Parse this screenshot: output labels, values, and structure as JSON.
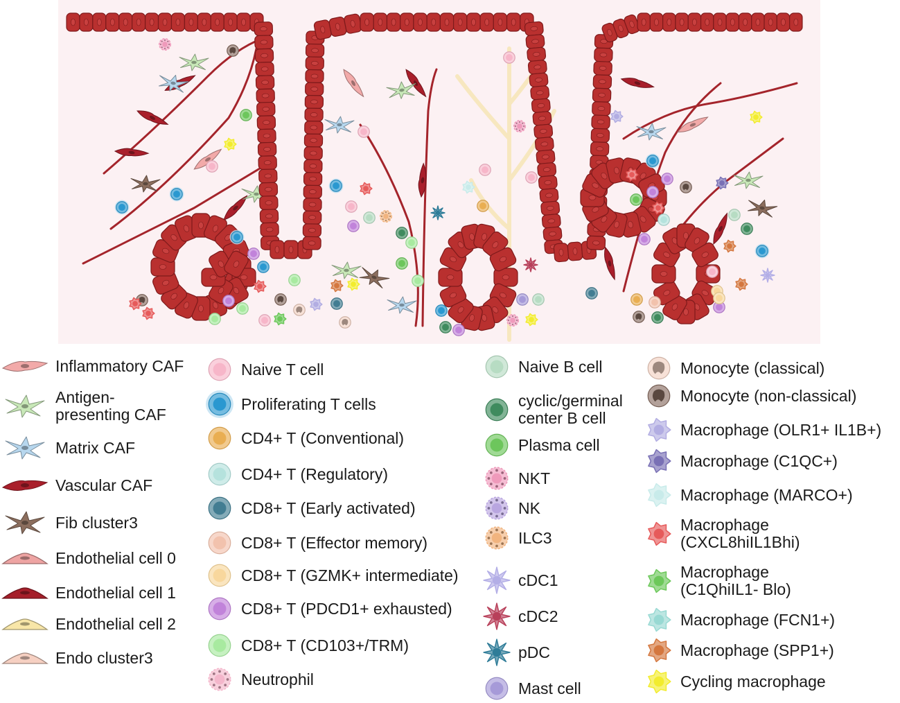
{
  "colors": {
    "tissue_bg": "#fcf1f3",
    "epithelium": "#b9302f",
    "epithelium_dark": "#7e1a1b",
    "nucleus": "#c8403f",
    "vessel": "#a4242b",
    "lymphatic": "#f7e7bf"
  },
  "legend": {
    "col1": [
      {
        "label": "Inflammatory CAF",
        "icon": "spindle-cell",
        "color": "#f2aaa9"
      },
      {
        "label": "Antigen-\npresenting CAF",
        "icon": "stellate-cell",
        "color": "#c8e8b8"
      },
      {
        "label": "Matrix CAF",
        "icon": "stellate-cell",
        "color": "#b7d7ee"
      },
      {
        "label": "Vascular CAF",
        "icon": "spindle-cell",
        "color": "#a91f2b"
      },
      {
        "label": "Fib cluster3",
        "icon": "stellate-cell",
        "color": "#8c6e5e"
      },
      {
        "label": "Endothelial cell 0",
        "icon": "flat-cell",
        "color": "#eea4a3"
      },
      {
        "label": "Endothelial cell 1",
        "icon": "flat-cell",
        "color": "#a51f2a"
      },
      {
        "label": "Endothelial cell 2",
        "icon": "flat-cell",
        "color": "#f8e6a8"
      },
      {
        "label": "Endo cluster3",
        "icon": "flat-cell",
        "color": "#f6d0c2"
      }
    ],
    "col2": [
      {
        "label": "Naive T cell",
        "icon": "round-cell",
        "color": "#f7b6c9"
      },
      {
        "label": "Proliferating T cells",
        "icon": "glowing-cell",
        "color": "#2a98d0"
      },
      {
        "label": "CD4+ T (Conventional)",
        "icon": "round-cell",
        "color": "#e9ae52"
      },
      {
        "label": "CD4+ T (Regulatory)",
        "icon": "round-cell",
        "color": "#b5e2dd"
      },
      {
        "label": "CD8+ T (Early activated)",
        "icon": "round-cell",
        "color": "#427d92"
      },
      {
        "label": "CD8+ T (Effector memory)",
        "icon": "round-cell",
        "color": "#f2c2ad"
      },
      {
        "label": "CD8+ T (GZMK+ intermediate)",
        "icon": "round-cell",
        "color": "#f8d79d"
      },
      {
        "label": "CD8+ T (PDCD1+ exhausted)",
        "icon": "round-cell",
        "color": "#c183da"
      },
      {
        "label": "CD8+ T (CD103+/TRM)",
        "icon": "round-cell",
        "color": "#a8eaa0"
      },
      {
        "label": "Neutrophil",
        "icon": "granular-cell",
        "color": "#f4b6cb"
      }
    ],
    "col3": [
      {
        "label": "Naive B cell",
        "icon": "round-cell",
        "color": "#b7dcc3"
      },
      {
        "label": "cyclic/germinal\ncenter B cell",
        "icon": "round-cell",
        "color": "#3f8b5e"
      },
      {
        "label": "Plasma cell",
        "icon": "round-cell",
        "color": "#6dc65c"
      },
      {
        "label": "NKT",
        "icon": "granular-cell",
        "color": "#ef9abb"
      },
      {
        "label": "NK",
        "icon": "granular-cell",
        "color": "#b9a6e0"
      },
      {
        "label": "ILC3",
        "icon": "granular-cell",
        "color": "#f1b47f"
      },
      {
        "label": "cDC1",
        "icon": "dendritic-cell",
        "color": "#b3aee6"
      },
      {
        "label": "cDC2",
        "icon": "dendritic-cell",
        "color": "#b8405a"
      },
      {
        "label": "pDC",
        "icon": "dendritic-cell",
        "color": "#2f7c98"
      },
      {
        "label": "Mast cell",
        "icon": "round-cell",
        "color": "#a69ad8"
      }
    ],
    "col4": [
      {
        "label": "Monocyte (classical)",
        "icon": "kidney-cell",
        "color": "#f2d1c2"
      },
      {
        "label": "Monocyte (non-classical)",
        "icon": "kidney-cell",
        "color": "#8a6e63"
      },
      {
        "label": "Macrophage (OLR1+ IL1B+)",
        "icon": "macrophage-cell",
        "color": "#b2ade2"
      },
      {
        "label": "Macrophage (C1QC+)",
        "icon": "macrophage-cell",
        "color": "#7970b5"
      },
      {
        "label": "Macrophage (MARCO+)",
        "icon": "macrophage-cell",
        "color": "#c8ebea"
      },
      {
        "label": "Macrophage\n(CXCL8hiIL1Bhi)",
        "icon": "macrophage-cell",
        "color": "#e65a5a"
      },
      {
        "label": "Macrophage\n(C1QhiIL1- Blo)",
        "icon": "macrophage-cell",
        "color": "#6cc85a"
      },
      {
        "label": "Macrophage (FCN1+)",
        "icon": "macrophage-cell",
        "color": "#98d9d3"
      },
      {
        "label": "Macrophage (SPP1+)",
        "icon": "macrophage-cell",
        "color": "#d4773f"
      },
      {
        "label": "Cycling macrophage",
        "icon": "macrophage-cell",
        "color": "#f2ec2e"
      }
    ]
  }
}
